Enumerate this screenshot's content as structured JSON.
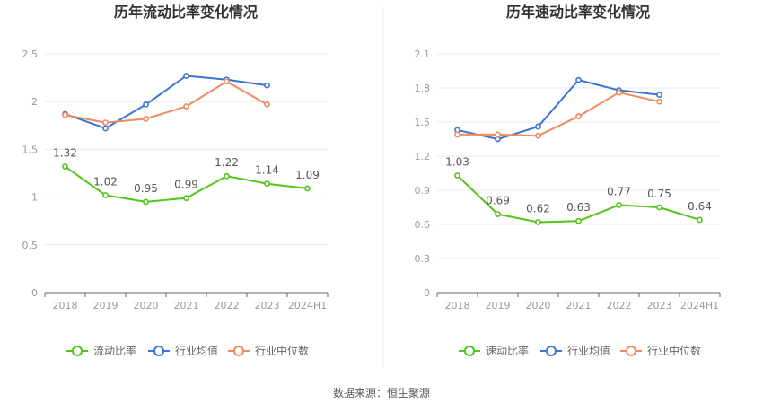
{
  "source_label": "数据来源：恒生聚源",
  "colors": {
    "company": "#52c41a",
    "industry_avg": "#3b74d8",
    "industry_median": "#f08a5d",
    "grid": "#e8e8e8",
    "axis": "#666666",
    "divider": "#eeeeee"
  },
  "chart_data": [
    {
      "type": "line",
      "title": "历年流动比率变化情况",
      "categories": [
        "2018",
        "2019",
        "2020",
        "2021",
        "2022",
        "2023",
        "2024H1"
      ],
      "ylim": [
        0,
        2.5
      ],
      "yticks": [
        "0",
        "0.5",
        "1",
        "1.5",
        "2",
        "2.5"
      ],
      "grid": true,
      "legend_position": "bottom",
      "series": [
        {
          "name": "流动比率",
          "color": "#52c41a",
          "labels": true,
          "values": [
            1.32,
            1.02,
            0.95,
            0.99,
            1.22,
            1.14,
            1.09
          ],
          "value_labels": [
            "1.32",
            "1.02",
            "0.95",
            "0.99",
            "1.22",
            "1.14",
            "1.09"
          ]
        },
        {
          "name": "行业均值",
          "color": "#3b74d8",
          "labels": false,
          "values": [
            1.87,
            1.72,
            1.97,
            2.27,
            2.23,
            2.17,
            null
          ]
        },
        {
          "name": "行业中位数",
          "color": "#f08a5d",
          "labels": false,
          "values": [
            1.86,
            1.78,
            1.82,
            1.95,
            2.21,
            1.97,
            null
          ]
        }
      ]
    },
    {
      "type": "line",
      "title": "历年速动比率变化情况",
      "categories": [
        "2018",
        "2019",
        "2020",
        "2021",
        "2022",
        "2023",
        "2024H1"
      ],
      "ylim": [
        0,
        2.1
      ],
      "yticks": [
        "0",
        "0.3",
        "0.6",
        "0.9",
        "1.2",
        "1.5",
        "1.8",
        "2.1"
      ],
      "grid": true,
      "legend_position": "bottom",
      "series": [
        {
          "name": "速动比率",
          "color": "#52c41a",
          "labels": true,
          "values": [
            1.03,
            0.69,
            0.62,
            0.63,
            0.77,
            0.75,
            0.64
          ],
          "value_labels": [
            "1.03",
            "0.69",
            "0.62",
            "0.63",
            "0.77",
            "0.75",
            "0.64"
          ]
        },
        {
          "name": "行业均值",
          "color": "#3b74d8",
          "labels": false,
          "values": [
            1.43,
            1.35,
            1.46,
            1.87,
            1.78,
            1.74,
            null
          ]
        },
        {
          "name": "行业中位数",
          "color": "#f08a5d",
          "labels": false,
          "values": [
            1.39,
            1.39,
            1.38,
            1.55,
            1.76,
            1.68,
            null
          ]
        }
      ]
    }
  ]
}
